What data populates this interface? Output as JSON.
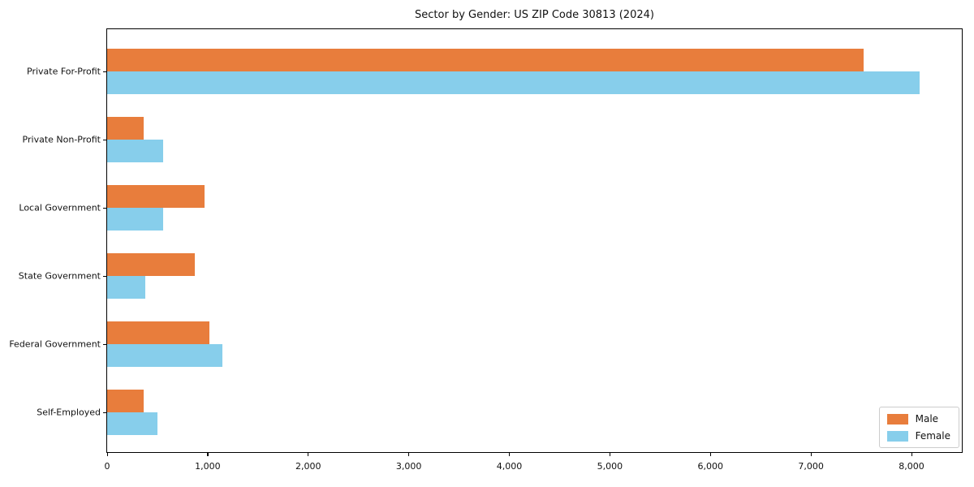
{
  "chart_data": {
    "type": "bar",
    "orientation": "horizontal",
    "title": "Sector by Gender: US ZIP Code 30813 (2024)",
    "xlabel": "",
    "ylabel": "",
    "categories": [
      "Private For-Profit",
      "Private Non-Profit",
      "Local Government",
      "State Government",
      "Federal Government",
      "Self-Employed"
    ],
    "series": [
      {
        "name": "Male",
        "color": "#e87d3c",
        "values": [
          7520,
          360,
          965,
          875,
          1020,
          360
        ]
      },
      {
        "name": "Female",
        "color": "#87ceeb",
        "values": [
          8080,
          555,
          560,
          380,
          1145,
          500
        ]
      }
    ],
    "xlim": [
      0,
      8500
    ],
    "xticks": [
      0,
      1000,
      2000,
      3000,
      4000,
      5000,
      6000,
      7000,
      8000
    ],
    "xtick_labels": [
      "0",
      "1,000",
      "2,000",
      "3,000",
      "4,000",
      "5,000",
      "6,000",
      "7,000",
      "8,000"
    ],
    "grid": false,
    "legend_position": "lower right",
    "legend_entries": [
      "Male",
      "Female"
    ]
  }
}
